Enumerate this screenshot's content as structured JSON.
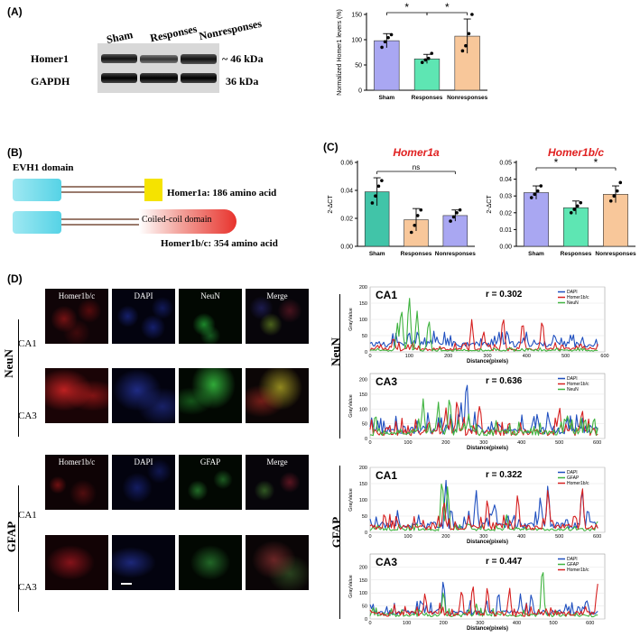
{
  "panels": {
    "a": "(A)",
    "b": "(B)",
    "c": "(C)",
    "d": "(D)"
  },
  "blot": {
    "lanes": [
      "Sham",
      "Responses",
      "Nonresponses"
    ],
    "rows": [
      {
        "protein": "Homer1",
        "size": "~ 46 kDa"
      },
      {
        "protein": "GAPDH",
        "size": "36 kDa"
      }
    ]
  },
  "panel_b": {
    "domain_label": "EVH1 domain",
    "coil_label": "Coiled-coil domain",
    "homer1a": "Homer1a: 186 amino acid",
    "homer1bc": "Homer1b/c: 354 amino acid",
    "colors": {
      "evh1": "#56d3e6",
      "homer1a_end": "#f5e300",
      "coil": "#e8332d"
    }
  },
  "chart_data": [
    {
      "id": "A",
      "type": "bar",
      "categories": [
        "Sham",
        "Responses",
        "Nonresponses"
      ],
      "values": [
        98,
        62,
        107
      ],
      "errors": [
        14,
        9,
        34
      ],
      "points": [
        [
          85,
          96,
          104,
          110
        ],
        [
          55,
          60,
          63,
          73
        ],
        [
          78,
          88,
          112,
          150
        ]
      ],
      "colors": [
        "#a9a7f2",
        "#5ee6b3",
        "#f8c79a"
      ],
      "ylabel": "Normalized Homer1 levers (%)",
      "ylim": [
        0,
        150
      ],
      "yticks": [
        0,
        50,
        100,
        150
      ],
      "sig": [
        {
          "from": 0,
          "to": 1,
          "label": "*"
        },
        {
          "from": 1,
          "to": 2,
          "label": "*"
        }
      ]
    },
    {
      "id": "C1",
      "type": "bar",
      "title": "Homer1a",
      "categories": [
        "Sham",
        "Responses",
        "Nonresponses"
      ],
      "values": [
        0.039,
        0.019,
        0.022
      ],
      "errors": [
        0.01,
        0.008,
        0.004
      ],
      "points": [
        [
          0.031,
          0.036,
          0.043,
          0.047
        ],
        [
          0.01,
          0.015,
          0.022,
          0.026
        ],
        [
          0.018,
          0.021,
          0.024,
          0.026
        ]
      ],
      "colors": [
        "#41c4a8",
        "#f8c79a",
        "#a9a7f2"
      ],
      "ylabel": "2-ΔCT",
      "ylim": [
        0,
        0.06
      ],
      "yticks": [
        0.0,
        0.02,
        0.04,
        0.06
      ],
      "sig": [
        {
          "from": 0,
          "to": 2,
          "label": "ns"
        }
      ]
    },
    {
      "id": "C2",
      "type": "bar",
      "title": "Homer1b/c",
      "categories": [
        "Sham",
        "Responses",
        "Nonresponses"
      ],
      "values": [
        0.032,
        0.023,
        0.031
      ],
      "errors": [
        0.004,
        0.004,
        0.005
      ],
      "points": [
        [
          0.029,
          0.031,
          0.033,
          0.036
        ],
        [
          0.02,
          0.022,
          0.024,
          0.026
        ],
        [
          0.027,
          0.03,
          0.033,
          0.038
        ]
      ],
      "colors": [
        "#a9a7f2",
        "#5ee6b3",
        "#f8c79a"
      ],
      "ylabel": "2-ΔCT",
      "ylim": [
        0,
        0.05
      ],
      "yticks": [
        0.0,
        0.01,
        0.02,
        0.03,
        0.04,
        0.05
      ],
      "sig": [
        {
          "from": 0,
          "to": 1,
          "label": "*"
        },
        {
          "from": 1,
          "to": 2,
          "label": "*"
        }
      ]
    },
    {
      "id": "D-NeuN-CA1",
      "type": "line",
      "title": "CA1",
      "annotation": "r = 0.302",
      "xlabel": "Distance(pixels)",
      "ylabel": "GrayValue",
      "xlim": [
        0,
        600
      ],
      "ylim": [
        0,
        200
      ],
      "xticks": [
        0,
        100,
        200,
        300,
        400,
        500,
        600
      ],
      "yticks": [
        0,
        50,
        100,
        150,
        200
      ],
      "series": [
        {
          "name": "DAPI",
          "color": "#1f4fbf",
          "seed": 11,
          "base": 15,
          "amp": 35,
          "peaks": [
            [
              35,
              30
            ],
            [
              100,
              65
            ],
            [
              190,
              40
            ],
            [
              330,
              45
            ],
            [
              470,
              55
            ],
            [
              510,
              30
            ]
          ]
        },
        {
          "name": "Homer1b/c",
          "color": "#d62020",
          "seed": 23,
          "base": 3,
          "amp": 20,
          "peaks": [
            [
              260,
              100
            ],
            [
              290,
              70
            ],
            [
              340,
              120
            ],
            [
              390,
              105
            ],
            [
              440,
              110
            ],
            [
              60,
              50
            ]
          ]
        },
        {
          "name": "NeuN",
          "color": "#3fb33f",
          "seed": 37,
          "base": 2,
          "amp": 8,
          "peaks": [
            [
              80,
              150
            ],
            [
              100,
              185
            ],
            [
              120,
              130
            ],
            [
              150,
              110
            ],
            [
              70,
              90
            ]
          ]
        }
      ]
    },
    {
      "id": "D-NeuN-CA3",
      "type": "line",
      "title": "CA3",
      "annotation": "r = 0.636",
      "xlabel": "Distance(pixels)",
      "ylabel": "GrayValue",
      "xlim": [
        0,
        620
      ],
      "ylim": [
        0,
        220
      ],
      "xticks": [
        0,
        100,
        200,
        300,
        400,
        500,
        600
      ],
      "yticks": [
        0,
        50,
        100,
        150,
        200
      ],
      "series": [
        {
          "name": "DAPI",
          "color": "#1f4fbf",
          "seed": 53,
          "base": 15,
          "amp": 55,
          "peaks": [
            [
              20,
              60
            ],
            [
              255,
              225
            ],
            [
              240,
              130
            ],
            [
              470,
              100
            ],
            [
              520,
              80
            ]
          ]
        },
        {
          "name": "Homer1b/c",
          "color": "#d62020",
          "seed": 67,
          "base": 10,
          "amp": 45,
          "peaks": [
            [
              200,
              110
            ],
            [
              230,
              150
            ],
            [
              290,
              130
            ],
            [
              500,
              120
            ],
            [
              560,
              110
            ]
          ]
        },
        {
          "name": "NeuN",
          "color": "#3fb33f",
          "seed": 71,
          "base": 10,
          "amp": 45,
          "peaks": [
            [
              140,
              140
            ],
            [
              180,
              130
            ],
            [
              210,
              160
            ],
            [
              260,
              90
            ],
            [
              520,
              90
            ]
          ]
        }
      ]
    },
    {
      "id": "D-GFAP-CA1",
      "type": "line",
      "title": "CA1",
      "annotation": "r = 0.322",
      "xlabel": "Distance(pixels)",
      "ylabel": "GrayValue",
      "xlim": [
        0,
        620
      ],
      "ylim": [
        0,
        200
      ],
      "xticks": [
        0,
        100,
        200,
        300,
        400,
        500,
        600
      ],
      "yticks": [
        0,
        50,
        100,
        150,
        200
      ],
      "series": [
        {
          "name": "DAPI",
          "color": "#1f4fbf",
          "seed": 83,
          "base": 12,
          "amp": 40,
          "peaks": [
            [
              200,
              170
            ],
            [
              280,
              140
            ],
            [
              330,
              100
            ],
            [
              450,
              120
            ],
            [
              470,
              160
            ],
            [
              560,
              150
            ],
            [
              610,
              130
            ]
          ]
        },
        {
          "name": "GFAP",
          "color": "#3fb33f",
          "seed": 97,
          "base": 5,
          "amp": 15,
          "peaks": [
            [
              190,
              185
            ],
            [
              205,
              150
            ],
            [
              360,
              60
            ],
            [
              600,
              40
            ]
          ]
        },
        {
          "name": "Homer1b/c",
          "color": "#d62020",
          "seed": 101,
          "base": 8,
          "amp": 35,
          "peaks": [
            [
              195,
              110
            ],
            [
              310,
              115
            ],
            [
              390,
              130
            ],
            [
              470,
              145
            ],
            [
              560,
              160
            ]
          ]
        }
      ]
    },
    {
      "id": "D-GFAP-CA3",
      "type": "line",
      "title": "CA3",
      "annotation": "r = 0.447",
      "xlabel": "Distance(pixels)",
      "ylabel": "GrayValue",
      "xlim": [
        0,
        640
      ],
      "ylim": [
        0,
        250
      ],
      "xticks": [
        0,
        100,
        200,
        300,
        400,
        500,
        600
      ],
      "yticks": [
        0,
        50,
        100,
        150,
        200
      ],
      "series": [
        {
          "name": "DAPI",
          "color": "#1f4fbf",
          "seed": 113,
          "base": 15,
          "amp": 40,
          "peaks": [
            [
              200,
              170
            ],
            [
              350,
              120
            ],
            [
              410,
              100
            ],
            [
              440,
              110
            ],
            [
              590,
              90
            ]
          ]
        },
        {
          "name": "GFAP",
          "color": "#3fb33f",
          "seed": 127,
          "base": 8,
          "amp": 25,
          "peaks": [
            [
              470,
              230
            ],
            [
              200,
              120
            ],
            [
              290,
              60
            ]
          ]
        },
        {
          "name": "Homer1b/c",
          "color": "#d62020",
          "seed": 131,
          "base": 10,
          "amp": 40,
          "peaks": [
            [
              150,
              110
            ],
            [
              250,
              130
            ],
            [
              280,
              150
            ],
            [
              320,
              140
            ],
            [
              380,
              130
            ],
            [
              620,
              150
            ]
          ]
        }
      ]
    }
  ],
  "micro": {
    "neun_headers": [
      "Homer1b/c",
      "DAPI",
      "NeuN",
      "Merge"
    ],
    "gfap_headers": [
      "Homer1b/c",
      "DAPI",
      "GFAP",
      "Merge"
    ],
    "groups": [
      "NeuN",
      "GFAP"
    ],
    "rows": [
      "CA1",
      "CA3"
    ]
  }
}
